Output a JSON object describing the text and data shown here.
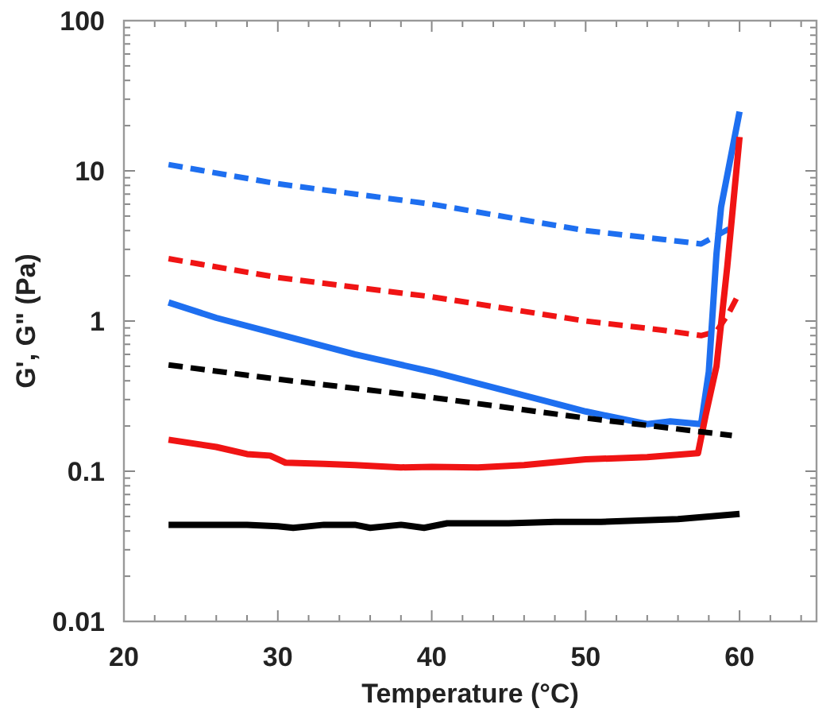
{
  "chart_data": {
    "type": "line",
    "xlabel": "Temperature (°C)",
    "ylabel": "G', G\" (Pa)",
    "log": "y",
    "grid": false,
    "xlim": [
      20,
      65
    ],
    "ylim": [
      0.01,
      100
    ],
    "xticks": [
      20,
      {
        "value": 22,
        "label": null
      },
      {
        "value": 24,
        "label": null
      },
      {
        "value": 26,
        "label": null
      },
      {
        "value": 28,
        "label": null
      },
      30,
      {
        "value": 32,
        "label": null
      },
      {
        "value": 34,
        "label": null
      },
      {
        "value": 36,
        "label": null
      },
      {
        "value": 38,
        "label": null
      },
      40,
      {
        "value": 42,
        "label": null
      },
      {
        "value": 44,
        "label": null
      },
      {
        "value": 46,
        "label": null
      },
      {
        "value": 48,
        "label": null
      },
      50,
      {
        "value": 52,
        "label": null
      },
      {
        "value": 54,
        "label": null
      },
      {
        "value": 56,
        "label": null
      },
      {
        "value": 58,
        "label": null
      },
      60,
      {
        "value": 62,
        "label": null
      },
      {
        "value": 64,
        "label": null
      }
    ],
    "yticks": [
      0.01,
      {
        "value": 0.02,
        "label": null
      },
      {
        "value": 0.03,
        "label": null
      },
      {
        "value": 0.04,
        "label": null
      },
      {
        "value": 0.05,
        "label": null
      },
      {
        "value": 0.06,
        "label": null
      },
      {
        "value": 0.07,
        "label": null
      },
      {
        "value": 0.08,
        "label": null
      },
      {
        "value": 0.09,
        "label": null
      },
      0.1,
      {
        "value": 0.2,
        "label": null
      },
      {
        "value": 0.3,
        "label": null
      },
      {
        "value": 0.4,
        "label": null
      },
      {
        "value": 0.5,
        "label": null
      },
      {
        "value": 0.6,
        "label": null
      },
      {
        "value": 0.7,
        "label": null
      },
      {
        "value": 0.8,
        "label": null
      },
      {
        "value": 0.9,
        "label": null
      },
      1,
      {
        "value": 2,
        "label": null
      },
      {
        "value": 3,
        "label": null
      },
      {
        "value": 4,
        "label": null
      },
      {
        "value": 5,
        "label": null
      },
      {
        "value": 6,
        "label": null
      },
      {
        "value": 7,
        "label": null
      },
      {
        "value": 8,
        "label": null
      },
      {
        "value": 9,
        "label": null
      },
      10,
      {
        "value": 20,
        "label": null
      },
      {
        "value": 30,
        "label": null
      },
      {
        "value": 40,
        "label": null
      },
      {
        "value": 50,
        "label": null
      },
      {
        "value": 60,
        "label": null
      },
      {
        "value": 70,
        "label": null
      },
      {
        "value": 80,
        "label": null
      },
      {
        "value": 90,
        "label": null
      },
      100
    ],
    "series": [
      {
        "color": "#1e6ff0",
        "line_style": "dashed",
        "x": [
          22.9,
          30,
          40,
          50,
          55,
          57.5,
          58.5,
          59.3
        ],
        "values": [
          11,
          8.2,
          6.0,
          4.0,
          3.5,
          3.26,
          3.7,
          4.1
        ]
      },
      {
        "color": "#f01414",
        "line_style": "dashed",
        "x": [
          22.9,
          30,
          40,
          50,
          55,
          57.5,
          58.5,
          59.3,
          60
        ],
        "values": [
          2.6,
          1.95,
          1.45,
          1.0,
          0.87,
          0.8,
          0.85,
          1.13,
          1.55
        ]
      },
      {
        "color": "#1e6ff0",
        "line_style": "solid",
        "x": [
          22.9,
          26,
          30,
          35,
          40,
          45,
          50,
          54,
          55.5,
          57.5,
          58,
          58.5,
          58.8,
          60
        ],
        "values": [
          1.33,
          1.05,
          0.82,
          0.6,
          0.46,
          0.34,
          0.25,
          0.206,
          0.215,
          0.206,
          0.46,
          2.8,
          5.75,
          24.8
        ]
      },
      {
        "color": "#f01414",
        "line_style": "solid",
        "x": [
          22.9,
          26,
          28,
          29.5,
          30.5,
          33,
          35,
          38,
          40,
          43,
          46,
          50,
          54,
          57.3,
          57.8,
          58.5,
          59.2,
          60
        ],
        "values": [
          0.162,
          0.145,
          0.13,
          0.127,
          0.114,
          0.112,
          0.11,
          0.106,
          0.107,
          0.106,
          0.11,
          0.12,
          0.124,
          0.132,
          0.237,
          0.5,
          2.3,
          16.8
        ]
      },
      {
        "color": "#000000",
        "line_style": "dashed",
        "x": [
          22.9,
          30,
          40,
          50,
          59.5
        ],
        "values": [
          0.51,
          0.41,
          0.31,
          0.226,
          0.173
        ]
      },
      {
        "color": "#000000",
        "line_style": "solid",
        "x": [
          22.9,
          28,
          30,
          31,
          33,
          35,
          36,
          38,
          39.5,
          41,
          45,
          48,
          51,
          56,
          60
        ],
        "values": [
          0.044,
          0.044,
          0.043,
          0.042,
          0.044,
          0.044,
          0.042,
          0.044,
          0.042,
          0.045,
          0.045,
          0.046,
          0.046,
          0.048,
          0.052
        ]
      }
    ]
  }
}
